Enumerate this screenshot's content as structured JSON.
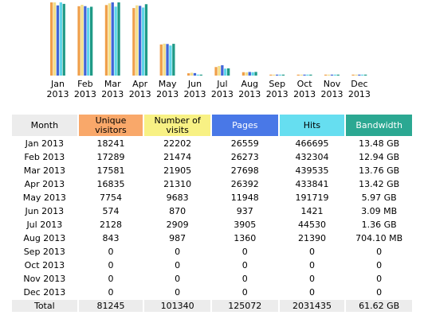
{
  "chart_data": {
    "type": "bar",
    "categories": [
      [
        "Jan",
        "2013"
      ],
      [
        "Feb",
        "2013"
      ],
      [
        "Mar",
        "2013"
      ],
      [
        "Apr",
        "2013"
      ],
      [
        "May",
        "2013"
      ],
      [
        "Jun",
        "2013"
      ],
      [
        "Jul",
        "2013"
      ],
      [
        "Aug",
        "2013"
      ],
      [
        "Sep",
        "2013"
      ],
      [
        "Oct",
        "2013"
      ],
      [
        "Nov",
        "2013"
      ],
      [
        "Dec",
        "2013"
      ]
    ],
    "series": [
      {
        "name": "Unique visitors",
        "color": "#f0a04a",
        "values": [
          18241,
          17289,
          17581,
          16835,
          7754,
          574,
          2128,
          843,
          0,
          0,
          0,
          0
        ]
      },
      {
        "name": "Number of visits",
        "color": "#f3df8a",
        "values": [
          22202,
          21474,
          21905,
          21310,
          9683,
          870,
          2909,
          987,
          0,
          0,
          0,
          0
        ]
      },
      {
        "name": "Pages",
        "color": "#4165d8",
        "values": [
          26559,
          26273,
          27698,
          26392,
          11948,
          937,
          3905,
          1360,
          0,
          0,
          0,
          0
        ]
      },
      {
        "name": "Hits",
        "color": "#5fd6ea",
        "values": [
          466695,
          432304,
          439535,
          433841,
          191719,
          1421,
          44530,
          21390,
          0,
          0,
          0,
          0
        ]
      },
      {
        "name": "Bandwidth",
        "color": "#1f9a86",
        "values": [
          13.48,
          12.94,
          13.76,
          13.42,
          5.97,
          0.00302,
          1.36,
          0.6876,
          0,
          0,
          0,
          0
        ]
      }
    ]
  },
  "table": {
    "headers": [
      {
        "text": "Month",
        "cls": "month-col",
        "name": "header-month"
      },
      {
        "text": "Unique visitors",
        "cls": "uniq-col",
        "name": "header-unique-visitors"
      },
      {
        "text": "Number of visits",
        "cls": "visit-col",
        "name": "header-number-of-visits"
      },
      {
        "text": "Pages",
        "cls": "page-col",
        "name": "header-pages"
      },
      {
        "text": "Hits",
        "cls": "hit-col",
        "name": "header-hits"
      },
      {
        "text": "Bandwidth",
        "cls": "bw-col",
        "name": "header-bandwidth"
      }
    ],
    "rows": [
      [
        "Jan 2013",
        "18241",
        "22202",
        "26559",
        "466695",
        "13.48 GB"
      ],
      [
        "Feb 2013",
        "17289",
        "21474",
        "26273",
        "432304",
        "12.94 GB"
      ],
      [
        "Mar 2013",
        "17581",
        "21905",
        "27698",
        "439535",
        "13.76 GB"
      ],
      [
        "Apr 2013",
        "16835",
        "21310",
        "26392",
        "433841",
        "13.42 GB"
      ],
      [
        "May 2013",
        "7754",
        "9683",
        "11948",
        "191719",
        "5.97 GB"
      ],
      [
        "Jun 2013",
        "574",
        "870",
        "937",
        "1421",
        "3.09 MB"
      ],
      [
        "Jul 2013",
        "2128",
        "2909",
        "3905",
        "44530",
        "1.36 GB"
      ],
      [
        "Aug 2013",
        "843",
        "987",
        "1360",
        "21390",
        "704.10 MB"
      ],
      [
        "Sep 2013",
        "0",
        "0",
        "0",
        "0",
        "0"
      ],
      [
        "Oct 2013",
        "0",
        "0",
        "0",
        "0",
        "0"
      ],
      [
        "Nov 2013",
        "0",
        "0",
        "0",
        "0",
        "0"
      ],
      [
        "Dec 2013",
        "0",
        "0",
        "0",
        "0",
        "0"
      ]
    ],
    "total": [
      "Total",
      "81245",
      "101340",
      "125072",
      "2031435",
      "61.62 GB"
    ]
  }
}
